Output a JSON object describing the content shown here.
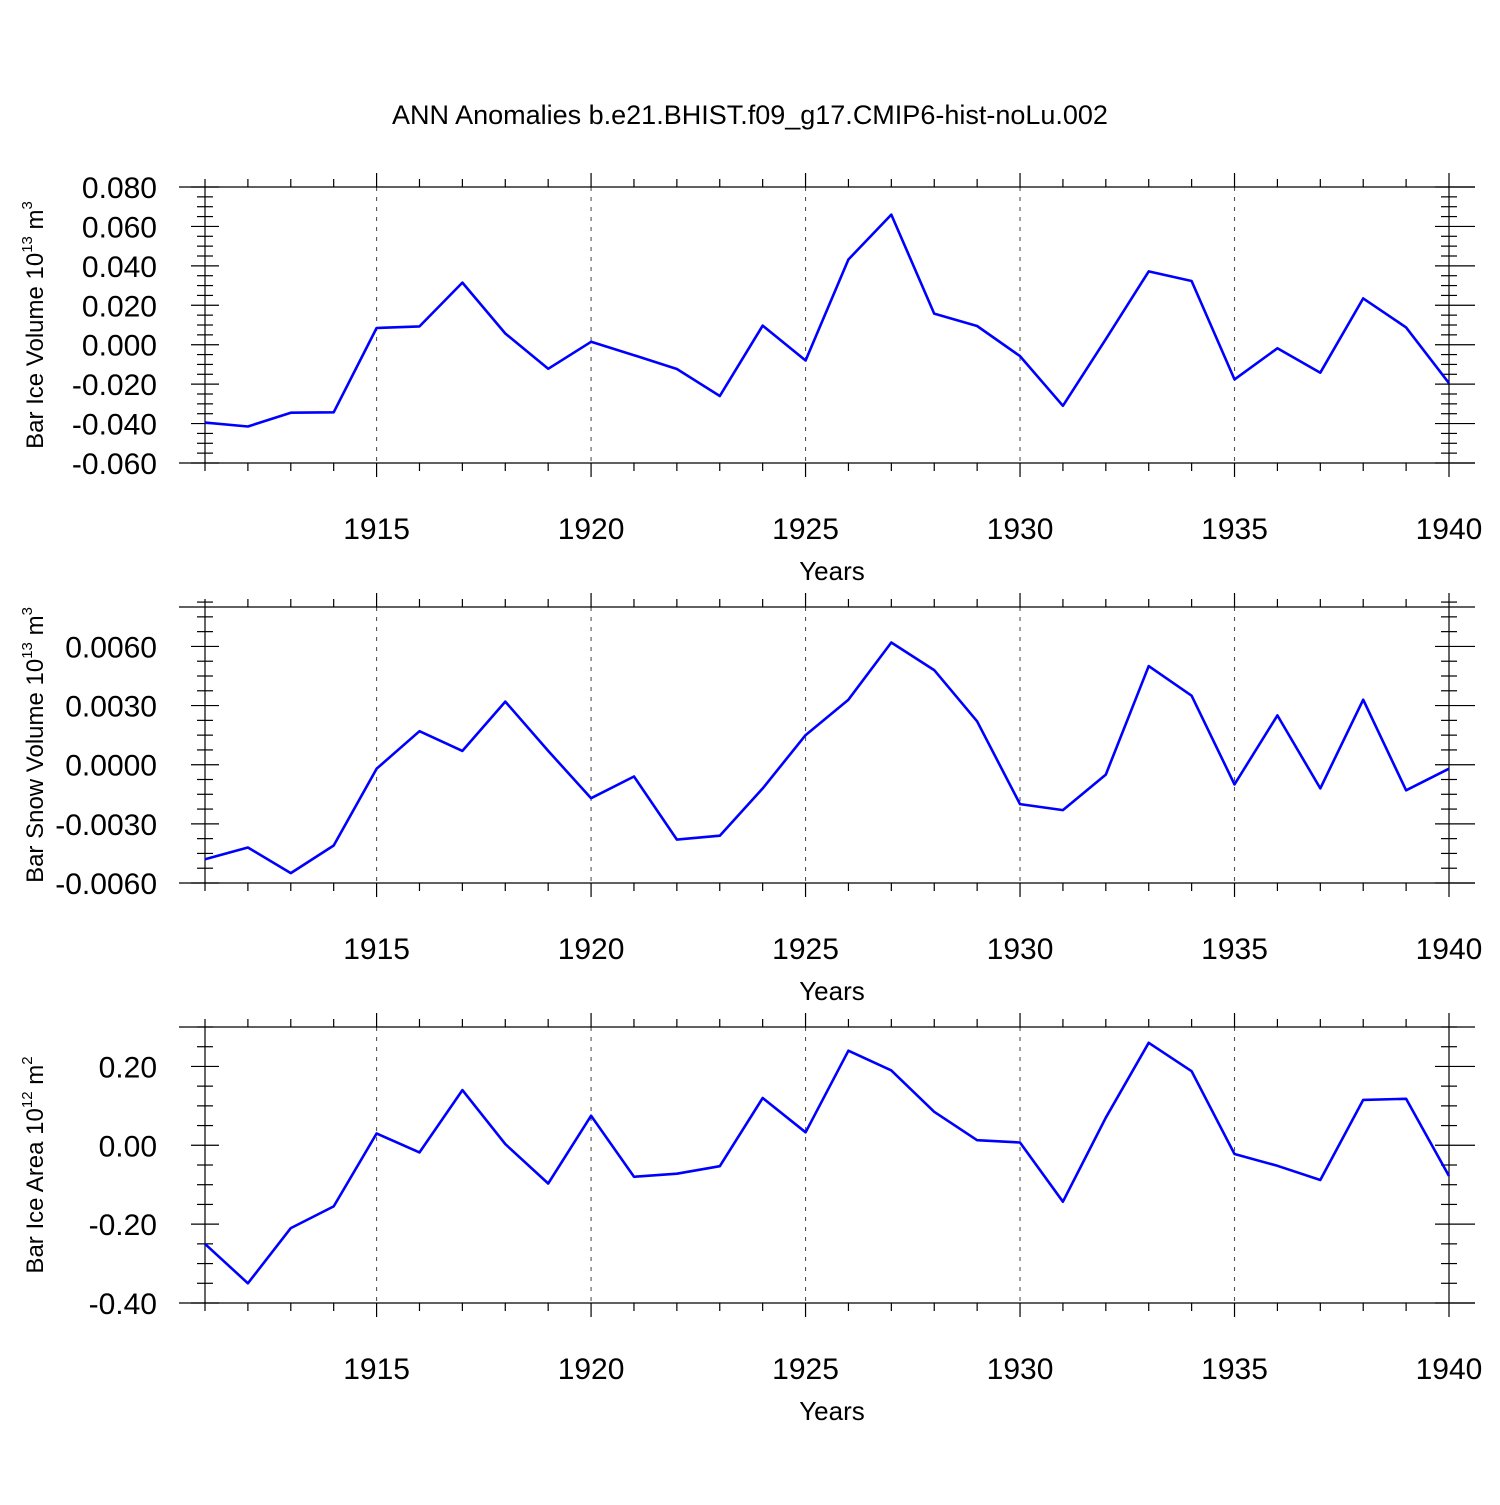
{
  "title": "ANN Anomalies b.e21.BHIST.f09_g17.CMIP6-hist-noLu.002",
  "line_color": "#0000ff",
  "chart_data": [
    {
      "type": "line",
      "ylabel": {
        "text": "Bar Ice Volume 10",
        "exp": "13",
        "unit": " m",
        "unit_exp": "3"
      },
      "xlabel": "Years",
      "xlim": [
        1911,
        1940
      ],
      "ylim": [
        -0.06,
        0.08
      ],
      "yticks": [
        -0.06,
        -0.04,
        -0.02,
        0.0,
        0.02,
        0.04,
        0.06,
        0.08
      ],
      "ytick_labels": [
        "-0.060",
        "-0.040",
        "-0.020",
        "0.000",
        "0.020",
        "0.040",
        "0.060",
        "0.080"
      ],
      "yminor_step": 0.005,
      "xticks": [
        1915,
        1920,
        1925,
        1930,
        1935,
        1940
      ],
      "xtick_labels": [
        "1915",
        "1920",
        "1925",
        "1930",
        "1935",
        "1940"
      ],
      "grid": "dashed vertical at major x ticks",
      "x": [
        1911,
        1912,
        1913,
        1914,
        1915,
        1916,
        1917,
        1918,
        1919,
        1920,
        1921,
        1922,
        1923,
        1924,
        1925,
        1926,
        1927,
        1928,
        1929,
        1930,
        1931,
        1932,
        1933,
        1934,
        1935,
        1936,
        1937,
        1938,
        1939,
        1940
      ],
      "values": [
        -0.0395,
        -0.0415,
        -0.0345,
        -0.0343,
        0.0085,
        0.0093,
        0.0315,
        0.0057,
        -0.0122,
        0.0015,
        -0.0053,
        -0.0123,
        -0.026,
        0.0097,
        -0.008,
        0.0432,
        0.066,
        0.0158,
        0.0095,
        -0.0058,
        -0.031,
        0.0028,
        0.0372,
        0.0323,
        -0.0176,
        -0.0018,
        -0.0142,
        0.0235,
        0.0088,
        -0.0195
      ]
    },
    {
      "type": "line",
      "ylabel": {
        "text": "Bar Snow Volume 10",
        "exp": "13",
        "unit": " m",
        "unit_exp": "3"
      },
      "xlabel": "Years",
      "xlim": [
        1911,
        1940
      ],
      "ylim": [
        -0.006,
        0.008
      ],
      "yticks": [
        -0.006,
        -0.003,
        0.0,
        0.003,
        0.006
      ],
      "ytick_labels": [
        "-0.0060",
        "-0.0030",
        "0.0000",
        "0.0030",
        "0.0060"
      ],
      "yminor_step": 0.00075,
      "xticks": [
        1915,
        1920,
        1925,
        1930,
        1935,
        1940
      ],
      "xtick_labels": [
        "1915",
        "1920",
        "1925",
        "1930",
        "1935",
        "1940"
      ],
      "grid": "dashed vertical at major x ticks",
      "x": [
        1911,
        1912,
        1913,
        1914,
        1915,
        1916,
        1917,
        1918,
        1919,
        1920,
        1921,
        1922,
        1923,
        1924,
        1925,
        1926,
        1927,
        1928,
        1929,
        1930,
        1931,
        1932,
        1933,
        1934,
        1935,
        1936,
        1937,
        1938,
        1939,
        1940
      ],
      "values": [
        -0.0048,
        -0.0042,
        -0.0055,
        -0.0041,
        -0.0002,
        0.0017,
        0.0007,
        0.0032,
        0.0007,
        -0.0017,
        -0.0006,
        -0.0038,
        -0.0036,
        -0.0012,
        0.0015,
        0.0033,
        0.0062,
        0.0048,
        0.0022,
        -0.002,
        -0.0023,
        -0.0005,
        0.005,
        0.0035,
        -0.001,
        0.0025,
        -0.0012,
        0.0033,
        -0.0013,
        -0.0002
      ]
    },
    {
      "type": "line",
      "ylabel": {
        "text": "Bar Ice Area 10",
        "exp": "12",
        "unit": " m",
        "unit_exp": "2"
      },
      "xlabel": "Years",
      "xlim": [
        1911,
        1940
      ],
      "ylim": [
        -0.4,
        0.3
      ],
      "yticks": [
        -0.4,
        -0.2,
        0.0,
        0.2
      ],
      "ytick_labels": [
        "-0.40",
        "-0.20",
        "0.00",
        "0.20"
      ],
      "yminor_step": 0.05,
      "xticks": [
        1915,
        1920,
        1925,
        1930,
        1935,
        1940
      ],
      "xtick_labels": [
        "1915",
        "1920",
        "1925",
        "1930",
        "1935",
        "1940"
      ],
      "grid": "dashed vertical at major x ticks",
      "x": [
        1911,
        1912,
        1913,
        1914,
        1915,
        1916,
        1917,
        1918,
        1919,
        1920,
        1921,
        1922,
        1923,
        1924,
        1925,
        1926,
        1927,
        1928,
        1929,
        1930,
        1931,
        1932,
        1933,
        1934,
        1935,
        1936,
        1937,
        1938,
        1939,
        1940
      ],
      "values": [
        -0.25,
        -0.35,
        -0.21,
        -0.155,
        0.03,
        -0.018,
        0.14,
        0.003,
        -0.097,
        0.075,
        -0.08,
        -0.072,
        -0.053,
        0.12,
        0.033,
        0.24,
        0.19,
        0.085,
        0.013,
        0.007,
        -0.143,
        0.07,
        0.26,
        0.188,
        -0.022,
        -0.052,
        -0.088,
        0.115,
        0.118,
        -0.078
      ]
    }
  ]
}
